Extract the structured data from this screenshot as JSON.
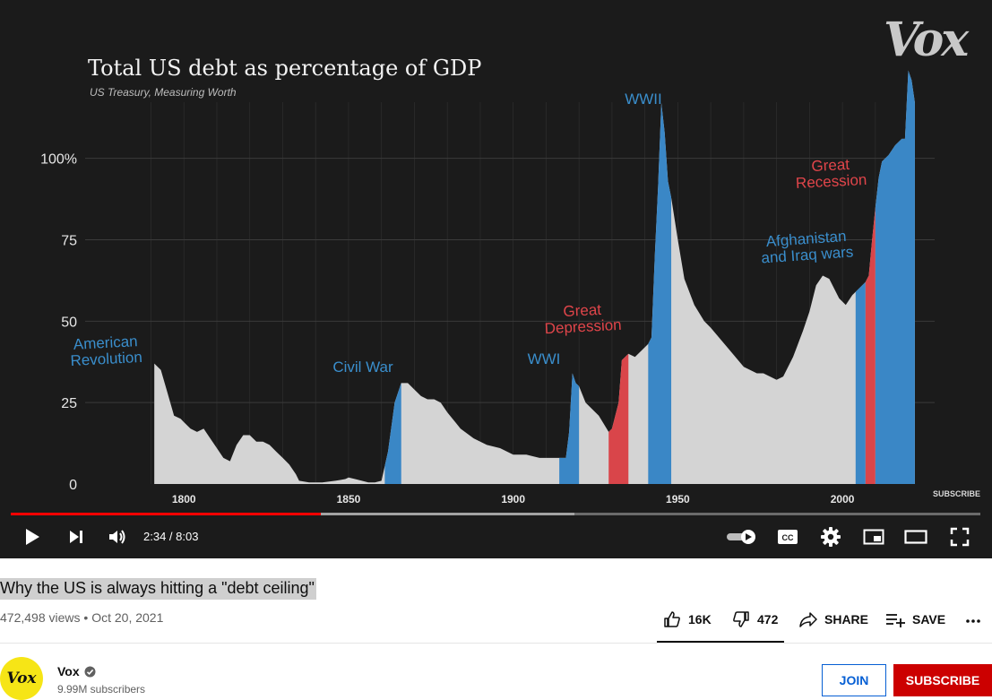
{
  "player": {
    "logo": "Vox",
    "subscribe_watermark": "SUBSCRIBE",
    "time_current": "2:34",
    "time_total": "8:03",
    "time_display": "2:34 / 8:03",
    "progress_played": 0.3195,
    "progress_buffered": 0.581,
    "controls": [
      "play-icon",
      "next-icon",
      "volume-icon",
      "autoplay-toggle-icon",
      "captions-icon",
      "settings-icon",
      "miniplayer-icon",
      "theater-icon",
      "fullscreen-icon"
    ],
    "captions_label": "CC"
  },
  "chart_data": {
    "type": "area",
    "title": "Total US debt as percentage of GDP",
    "subtitle": "US Treasury, Measuring Worth",
    "xlim": [
      1770,
      2028
    ],
    "ylim": [
      0,
      120
    ],
    "x_ticks": [
      1800,
      1850,
      1900,
      1950,
      2000
    ],
    "x_tick_labels": [
      "1800",
      "1850",
      "1900",
      "1950",
      "2000"
    ],
    "y_ticks": [
      0,
      25,
      50,
      75,
      100
    ],
    "y_tick_labels": [
      "0",
      "25",
      "50",
      "75",
      "100%"
    ],
    "grid": true,
    "series": [
      {
        "x": [
          1791,
          1793,
          1795,
          1797,
          1799,
          1800,
          1802,
          1804,
          1806,
          1808,
          1810,
          1812,
          1814,
          1816,
          1818,
          1820,
          1822,
          1824,
          1826,
          1828,
          1830,
          1832,
          1834,
          1835,
          1838,
          1842,
          1846,
          1849,
          1850,
          1852,
          1854,
          1856,
          1858,
          1860,
          1862,
          1864,
          1866,
          1868,
          1870,
          1872,
          1874,
          1876,
          1878,
          1880,
          1884,
          1888,
          1892,
          1896,
          1900,
          1904,
          1908,
          1912,
          1914,
          1916,
          1917,
          1918,
          1919,
          1920,
          1922,
          1926,
          1929,
          1930,
          1932,
          1933,
          1935,
          1937,
          1939,
          1941,
          1942,
          1943,
          1944,
          1945,
          1946,
          1947,
          1948,
          1950,
          1952,
          1955,
          1958,
          1960,
          1965,
          1970,
          1974,
          1976,
          1980,
          1982,
          1985,
          1988,
          1990,
          1992,
          1994,
          1996,
          1999,
          2001,
          2003,
          2005,
          2007,
          2008,
          2009,
          2010,
          2011,
          2012,
          2014,
          2016,
          2018,
          2019,
          2020,
          2021,
          2022
        ],
        "y": [
          37,
          35,
          28,
          21,
          20,
          19,
          17,
          16,
          17,
          14,
          11,
          8,
          7,
          12,
          15,
          15,
          13,
          13,
          12,
          10,
          8,
          6,
          3,
          1,
          0.5,
          0.5,
          1,
          1.5,
          2,
          1.5,
          1,
          0.5,
          0.5,
          1,
          10,
          25,
          31,
          31,
          29,
          27,
          26,
          26,
          25,
          22,
          17,
          14,
          12,
          11,
          9,
          9,
          8,
          8,
          8,
          8,
          16,
          34,
          31,
          30,
          25,
          21,
          16,
          17,
          25,
          38,
          40,
          39,
          41,
          43,
          45,
          70,
          91,
          117,
          108,
          93,
          88,
          75,
          63,
          55,
          50,
          48,
          42,
          36,
          34,
          34,
          32,
          33,
          39,
          47,
          53,
          61,
          64,
          63,
          57,
          55,
          58,
          60,
          62,
          64,
          75,
          85,
          94,
          99,
          101,
          104,
          106,
          106,
          127,
          124,
          117
        ],
        "highlights": [
          {
            "x0": 1861,
            "x1": 1866,
            "color": "#3a87c6"
          },
          {
            "x0": 1914,
            "x1": 1920,
            "color": "#3a87c6"
          },
          {
            "x0": 1929,
            "x1": 1935,
            "color": "#d9454a"
          },
          {
            "x0": 1941,
            "x1": 1948,
            "color": "#3a87c6"
          },
          {
            "x0": 2004,
            "x1": 2007,
            "color": "#3a87c6"
          },
          {
            "x0": 2007,
            "x1": 2010,
            "color": "#d9454a"
          },
          {
            "x0": 2010,
            "x1": 2022,
            "color": "#3a87c6"
          }
        ]
      }
    ],
    "annotations": [
      {
        "lines": [
          "American",
          "Revolution"
        ],
        "color": "#3a8ecc"
      },
      {
        "lines": [
          "Civil War"
        ],
        "color": "#3a8ecc"
      },
      {
        "lines": [
          "WWI"
        ],
        "color": "#3a8ecc"
      },
      {
        "lines": [
          "Great",
          "Depression"
        ],
        "color": "#e0454a"
      },
      {
        "lines": [
          "WWII"
        ],
        "color": "#3a8ecc"
      },
      {
        "lines": [
          "Afghanistan",
          "and Iraq wars"
        ],
        "color": "#3a8ecc"
      },
      {
        "lines": [
          "Great",
          "Recession"
        ],
        "color": "#e0454a"
      }
    ],
    "colors": {
      "area": "#d4d4d4",
      "war": "#3a87c6",
      "recession": "#d9454a",
      "background": "#1b1b1b",
      "grid": "#3b3b3b",
      "axis_text": "#e6e6e6"
    }
  },
  "video": {
    "title": "Why the US is always hitting a \"debt ceiling\"",
    "views": "472,498 views",
    "separator": "•",
    "date": "Oct 20, 2021",
    "likes": "16K",
    "dislikes": "472",
    "share_label": "SHARE",
    "save_label": "SAVE"
  },
  "channel": {
    "name": "Vox",
    "avatar_text": "Vox",
    "subscribers": "9.99M subscribers",
    "join_label": "JOIN",
    "subscribe_label": "SUBSCRIBE"
  },
  "colors": {
    "accent_red": "#ff0000",
    "subscribe_red": "#cc0000",
    "join_blue": "#065fd4",
    "avatar_yellow": "#f6e516"
  }
}
